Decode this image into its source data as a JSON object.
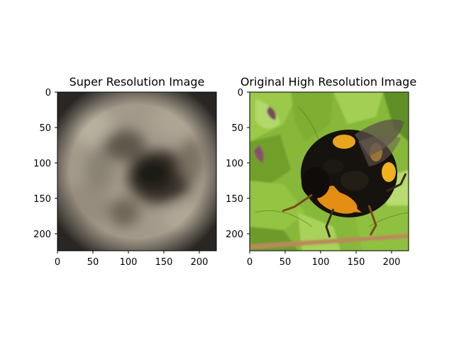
{
  "figure": {
    "background": "#ffffff"
  },
  "chart_data": [
    {
      "type": "heatmap",
      "title": "Super Resolution Image",
      "xlim": [
        0,
        224
      ],
      "ylim": [
        224,
        0
      ],
      "xticks": [
        0,
        50,
        100,
        150,
        200
      ],
      "yticks": [
        0,
        50,
        100,
        150,
        200
      ],
      "xtick_labels": [
        "0",
        "50",
        "100",
        "150",
        "200"
      ],
      "ytick_labels": [
        "0",
        "50",
        "100",
        "150",
        "200"
      ],
      "grid": false,
      "content": "blurry grayscale-brown reconstruction with a dark blob near the center-right",
      "colors": {
        "base": "#a69e8f",
        "dark": "#2a2520",
        "edge": "#1a1612"
      }
    },
    {
      "type": "heatmap",
      "title": "Original High Resolution Image",
      "xlim": [
        0,
        224
      ],
      "ylim": [
        224,
        0
      ],
      "xticks": [
        0,
        50,
        100,
        150,
        200
      ],
      "yticks": [
        0,
        50,
        100,
        150,
        200
      ],
      "xtick_labels": [
        "0",
        "50",
        "100",
        "150",
        "200"
      ],
      "ytick_labels": [
        "0",
        "50",
        "100",
        "150",
        "200"
      ],
      "grid": false,
      "content": "photo of a bumblebee on green leaves",
      "colors": {
        "leaf": "#8cbf3a",
        "leaf_dark": "#4e7f1c",
        "bee_black": "#15110d",
        "bee_orange": "#e08a10",
        "bee_yellow": "#f0b020"
      }
    }
  ]
}
